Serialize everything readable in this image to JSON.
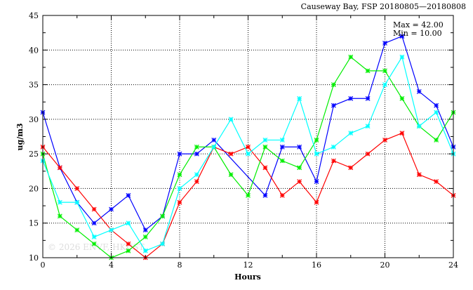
{
  "chart_data": {
    "type": "line",
    "title": "Causeway Bay, FSP 20180805—20180808",
    "xlabel": "Hours",
    "ylabel": "ug/m3",
    "xlim": [
      0,
      24
    ],
    "ylim": [
      10,
      45
    ],
    "xticks": [
      0,
      4,
      8,
      12,
      16,
      20,
      24
    ],
    "yticks": [
      10,
      15,
      20,
      25,
      30,
      35,
      40,
      45
    ],
    "grid": true,
    "annotations": [
      "Max = 42.00",
      "Min = 10.00"
    ],
    "watermark": "© 2026  ENVF, HKUST",
    "x": [
      0,
      1,
      2,
      3,
      4,
      5,
      6,
      7,
      8,
      9,
      10,
      11,
      12,
      13,
      14,
      15,
      16,
      17,
      18,
      19,
      20,
      21,
      22,
      23,
      24
    ],
    "series": [
      {
        "name": "blue",
        "color": "#0000ff",
        "values": [
          31,
          23,
          18,
          15,
          17,
          19,
          14,
          16,
          25,
          25,
          27,
          null,
          null,
          19,
          26,
          26,
          21,
          32,
          33,
          33,
          41,
          42,
          34,
          32,
          26
        ]
      },
      {
        "name": "red",
        "color": "#ff0000",
        "values": [
          26,
          23,
          20,
          17,
          14,
          12,
          10,
          12,
          18,
          21,
          26,
          25,
          26,
          23,
          19,
          21,
          18,
          24,
          23,
          25,
          27,
          28,
          22,
          21,
          19
        ]
      },
      {
        "name": "green",
        "color": "#00ee00",
        "values": [
          25,
          16,
          14,
          12,
          10,
          11,
          13,
          16,
          22,
          26,
          26,
          22,
          19,
          26,
          24,
          23,
          27,
          35,
          39,
          37,
          37,
          33,
          29,
          27,
          31
        ]
      },
      {
        "name": "cyan",
        "color": "#00ffff",
        "values": [
          24,
          18,
          18,
          13,
          14,
          15,
          11,
          12,
          20,
          22,
          26,
          30,
          25,
          27,
          27,
          33,
          25,
          26,
          28,
          29,
          35,
          39,
          29,
          31,
          25
        ]
      }
    ]
  }
}
